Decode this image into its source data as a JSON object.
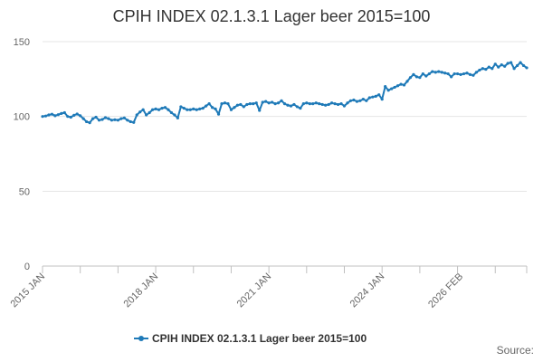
{
  "chart_data": {
    "type": "line",
    "title": "CPIH INDEX 02.1.3.1 Lager beer 2015=100",
    "xlabel": "",
    "ylabel": "",
    "ylim": [
      0,
      150
    ],
    "yticks": [
      0,
      50,
      100,
      150
    ],
    "xticks": [
      "2015 JAN",
      "2018 JAN",
      "2021 JAN",
      "2024 JAN",
      "2026 FEB"
    ],
    "grid": true,
    "legend_position": "bottom",
    "series": [
      {
        "name": "CPIH INDEX 02.1.3.1 Lager beer 2015=100",
        "color": "#1f7ab8",
        "x_start": "2015-01",
        "values": [
          100.0,
          100.3,
          101.0,
          101.5,
          100.5,
          101.2,
          102.0,
          102.5,
          100.0,
          99.5,
          100.8,
          101.6,
          100.5,
          98.5,
          96.5,
          95.8,
          98.5,
          99.5,
          97.5,
          98.0,
          99.2,
          98.5,
          97.5,
          97.8,
          97.5,
          98.5,
          99.0,
          97.5,
          96.5,
          96.0,
          101.0,
          103.0,
          104.5,
          101.0,
          102.5,
          104.5,
          105.0,
          104.5,
          105.5,
          106.0,
          104.5,
          102.5,
          101.0,
          99.0,
          106.5,
          105.5,
          104.5,
          104.5,
          105.0,
          104.5,
          105.0,
          105.5,
          107.0,
          108.5,
          106.0,
          105.0,
          101.5,
          108.5,
          109.0,
          108.5,
          104.5,
          106.0,
          107.5,
          108.0,
          106.5,
          108.0,
          108.5,
          108.5,
          109.0,
          104.0,
          109.5,
          110.0,
          109.0,
          109.5,
          108.5,
          109.0,
          110.5,
          108.5,
          107.5,
          107.0,
          108.0,
          106.5,
          105.5,
          108.5,
          109.0,
          108.5,
          108.5,
          109.0,
          108.5,
          108.0,
          107.5,
          108.0,
          109.0,
          108.5,
          108.0,
          108.5,
          107.0,
          109.0,
          110.5,
          111.0,
          110.0,
          110.5,
          111.5,
          110.5,
          112.5,
          113.0,
          113.5,
          114.5,
          111.5,
          120.0,
          117.5,
          118.5,
          119.5,
          120.5,
          121.5,
          121.0,
          123.5,
          126.0,
          128.0,
          126.5,
          126.0,
          128.5,
          127.0,
          128.5,
          130.0,
          129.5,
          130.0,
          129.5,
          129.0,
          128.5,
          126.5,
          128.5,
          128.5,
          128.0,
          128.5,
          129.0,
          128.0,
          127.5,
          129.5,
          131.0,
          132.0,
          131.5,
          133.0,
          132.0,
          135.0,
          133.0,
          134.5,
          133.5,
          135.5,
          136.0,
          132.0,
          134.0,
          136.0,
          134.0,
          132.5
        ]
      }
    ]
  },
  "source_label": "Source:"
}
